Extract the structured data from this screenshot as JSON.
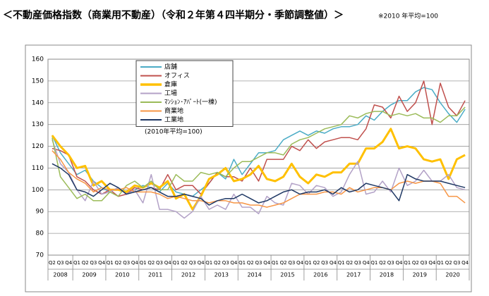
{
  "chart_data": {
    "type": "line",
    "title": "＜不動産価格指数（商業用不動産）（令和２年第４四半期分・季節調整値）＞",
    "subtitle": "※2010 年平均=100",
    "annotation": "(2010年平均=100)",
    "categories": [
      "Q2",
      "Q3",
      "Q4",
      "Q1",
      "Q2",
      "Q3",
      "Q4",
      "Q1",
      "Q2",
      "Q3",
      "Q4",
      "Q1",
      "Q2",
      "Q3",
      "Q4",
      "Q1",
      "Q2",
      "Q3",
      "Q4",
      "Q1",
      "Q2",
      "Q3",
      "Q4",
      "Q1",
      "Q2",
      "Q3",
      "Q4",
      "Q1",
      "Q2",
      "Q3",
      "Q4",
      "Q1",
      "Q2",
      "Q3",
      "Q4",
      "Q1",
      "Q2",
      "Q3",
      "Q4",
      "Q1",
      "Q2",
      "Q3",
      "Q4",
      "Q1",
      "Q2",
      "Q3",
      "Q4",
      "Q1",
      "Q2",
      "Q3",
      "Q4"
    ],
    "years": [
      "2008",
      "2009",
      "2010",
      "2011",
      "2012",
      "2013",
      "2014",
      "2015",
      "2016",
      "2017",
      "2018",
      "2019",
      "2020"
    ],
    "ylim": [
      70,
      160
    ],
    "yticks": [
      70,
      80,
      90,
      100,
      110,
      120,
      130,
      140,
      150,
      160
    ],
    "grid": true,
    "series": [
      {
        "name": "店舗",
        "color": "#4bacc6",
        "width": 1.5,
        "values": [
          125,
          117,
          112,
          107,
          109,
          104,
          101,
          99,
          101,
          98,
          100,
          102,
          101,
          99,
          103,
          99,
          98,
          97,
          100,
          103,
          108,
          105,
          114,
          107,
          112,
          117,
          117,
          118,
          123,
          125,
          127,
          125,
          127,
          126,
          128,
          129,
          129,
          130,
          134,
          132,
          136,
          139,
          141,
          141,
          145,
          147,
          146,
          140,
          135,
          131,
          137
        ]
      },
      {
        "name": "オフィス",
        "color": "#c0504d",
        "width": 1.5,
        "values": [
          119,
          118,
          116,
          106,
          104,
          100,
          98,
          100,
          97,
          98,
          101,
          100,
          101,
          100,
          107,
          100,
          102,
          102,
          98,
          103,
          108,
          106,
          106,
          104,
          110,
          104,
          114,
          114,
          114,
          120,
          118,
          123,
          119,
          122,
          123,
          124,
          124,
          123,
          128,
          139,
          138,
          133,
          143,
          136,
          140,
          150,
          130,
          149,
          138,
          134,
          141
        ]
      },
      {
        "name": "倉庫",
        "color": "#ffc000",
        "width": 3,
        "values": [
          125,
          120,
          116,
          110,
          111,
          102,
          104,
          100,
          100,
          99,
          102,
          101,
          103,
          101,
          104,
          96,
          98,
          91,
          97,
          105,
          107,
          110,
          104,
          105,
          107,
          111,
          105,
          104,
          106,
          112,
          106,
          103,
          107,
          106,
          108,
          108,
          112,
          112,
          119,
          119,
          122,
          128,
          119,
          120,
          119,
          114,
          113,
          114,
          105,
          114,
          116
        ]
      },
      {
        "name": "工場",
        "color": "#b3a2c7",
        "width": 1.5,
        "values": [
          123,
          112,
          108,
          100,
          95,
          104,
          98,
          99,
          101,
          98,
          100,
          94,
          107,
          91,
          91,
          90,
          87,
          90,
          97,
          91,
          93,
          91,
          98,
          92,
          92,
          89,
          97,
          94,
          93,
          103,
          102,
          98,
          102,
          101,
          97,
          99,
          107,
          113,
          98,
          99,
          104,
          99,
          110,
          102,
          104,
          109,
          104,
          104,
          107,
          101,
          100
        ]
      },
      {
        "name": "ﾏﾝｼｮﾝ･ｱﾊﾟｰﾄ(一棟)",
        "color": "#9bbb59",
        "width": 1.5,
        "values": [
          124,
          106,
          101,
          96,
          98,
          95,
          95,
          99,
          97,
          102,
          104,
          101,
          104,
          100,
          100,
          107,
          104,
          104,
          108,
          107,
          108,
          106,
          110,
          113,
          113,
          115,
          117,
          117,
          116,
          121,
          123,
          124,
          126,
          128,
          129,
          130,
          134,
          133,
          135,
          136,
          136,
          134,
          135,
          134,
          135,
          133,
          133,
          131,
          134,
          134,
          138
        ]
      },
      {
        "name": "商業地",
        "color": "#f79646",
        "width": 1.5,
        "values": [
          118,
          114,
          108,
          105,
          103,
          99,
          101,
          100,
          100,
          101,
          99,
          99,
          99,
          98,
          96,
          97,
          96,
          95,
          95,
          94,
          95,
          95,
          94,
          94,
          93,
          93,
          92,
          93,
          94,
          96,
          98,
          98,
          98,
          99,
          99,
          98,
          101,
          99,
          100,
          101,
          101,
          100,
          103,
          104,
          103,
          104,
          104,
          103,
          97,
          97,
          94
        ]
      },
      {
        "name": "工業地",
        "color": "#1f3864",
        "width": 1.5,
        "values": [
          112,
          110,
          107,
          100,
          99,
          97,
          100,
          103,
          101,
          98,
          99,
          100,
          101,
          99,
          97,
          97,
          98,
          97,
          96,
          93,
          95,
          96,
          96,
          98,
          96,
          94,
          95,
          97,
          99,
          100,
          98,
          99,
          99,
          100,
          98,
          101,
          99,
          100,
          103,
          102,
          101,
          100,
          95,
          107,
          105,
          104,
          104,
          104,
          103,
          102,
          101
        ]
      }
    ]
  }
}
